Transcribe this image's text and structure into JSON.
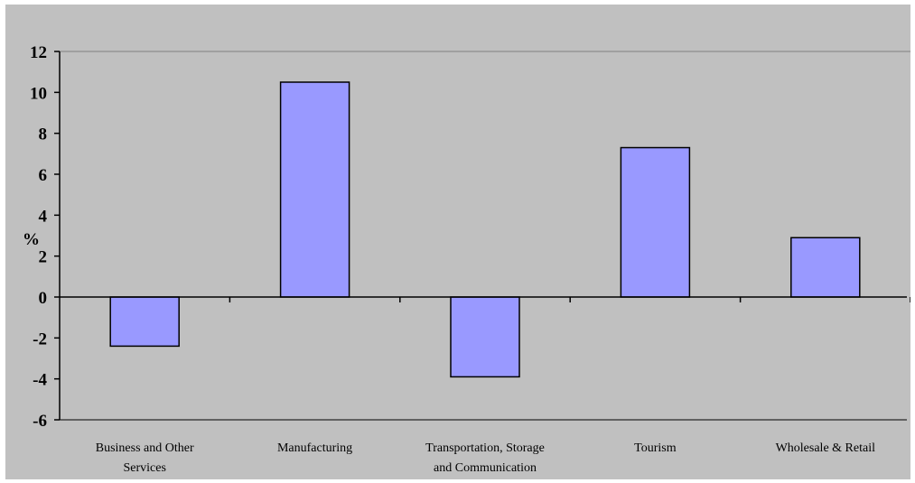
{
  "chart_data": {
    "type": "bar",
    "ylabel": "%",
    "categories": [
      [
        "Business and Other",
        "Services"
      ],
      [
        "Manufacturing"
      ],
      [
        "Transportation, Storage",
        "and Communication"
      ],
      [
        "Tourism"
      ],
      [
        "Wholesale & Retail"
      ]
    ],
    "values": [
      -2.4,
      10.5,
      -3.9,
      7.3,
      2.9
    ],
    "ylim": [
      -6,
      12
    ],
    "yticks": [
      12,
      10,
      8,
      6,
      4,
      2,
      0,
      -2,
      -4,
      -6
    ],
    "grid": "top line only",
    "legend": "none",
    "colors": {
      "bar_fill": "#9999ff",
      "bar_stroke": "#000000",
      "plot_background": "#c0c0c0",
      "axis": "#000000",
      "gridline": "#808080"
    }
  }
}
